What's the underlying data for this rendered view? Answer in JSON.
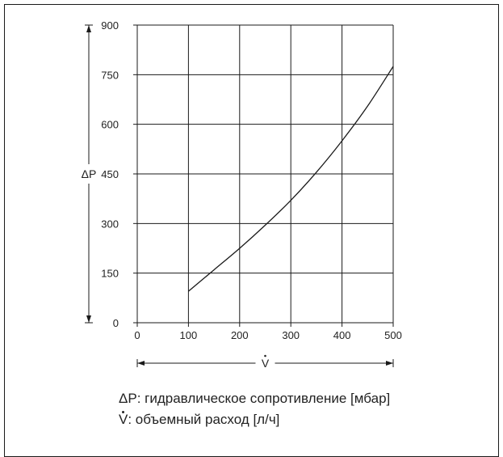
{
  "chart_data": {
    "type": "line",
    "x_ticks": [
      "0",
      "100",
      "200",
      "300",
      "400",
      "500"
    ],
    "y_ticks": [
      "0",
      "150",
      "300",
      "450",
      "600",
      "750",
      "900"
    ],
    "xlim": [
      0,
      500
    ],
    "ylim": [
      0,
      900
    ],
    "grid": true,
    "x_axis_label": "V",
    "y_axis_label": "ΔP",
    "series": [
      {
        "x": [
          100,
          150,
          200,
          250,
          300,
          350,
          400,
          450,
          500
        ],
        "y": [
          95,
          160,
          225,
          295,
          370,
          455,
          550,
          655,
          775
        ]
      }
    ],
    "legend": [
      {
        "symbol": "ΔP",
        "text": ": гидравлическое сопротивление [мбар]"
      },
      {
        "symbol": "V",
        "text": ": объемный расход [л/ч]"
      }
    ]
  },
  "colors": {
    "line": "#1a1a1a",
    "grid": "#1a1a1a",
    "text": "#222222"
  }
}
